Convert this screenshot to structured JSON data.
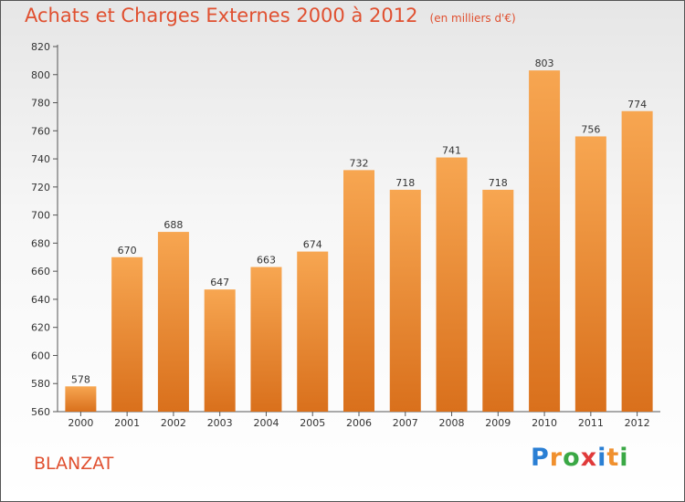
{
  "chart_data": {
    "type": "bar",
    "title": "Achats et Charges Externes 2000 à 2012",
    "subtitle": "(en milliers d'€)",
    "categories": [
      "2000",
      "2001",
      "2002",
      "2003",
      "2004",
      "2005",
      "2006",
      "2007",
      "2008",
      "2009",
      "2010",
      "2011",
      "2012"
    ],
    "values": [
      578,
      670,
      688,
      647,
      663,
      674,
      732,
      718,
      741,
      718,
      803,
      756,
      774
    ],
    "ylim": [
      560,
      820
    ],
    "yticks": [
      560,
      580,
      600,
      620,
      640,
      660,
      680,
      700,
      720,
      740,
      760,
      780,
      800,
      820
    ],
    "grid": false,
    "bar_color": "#f0902e"
  },
  "footer": {
    "city": "BLANZAT"
  },
  "logo": {
    "text": "Proxiti",
    "letters": [
      "P",
      "r",
      "o",
      "x",
      "i",
      "t",
      "i"
    ],
    "colors": [
      "#2a7fd4",
      "#f0902e",
      "#3aa845",
      "#e03a3a",
      "#2a7fd4",
      "#f0902e",
      "#3aa845"
    ]
  }
}
